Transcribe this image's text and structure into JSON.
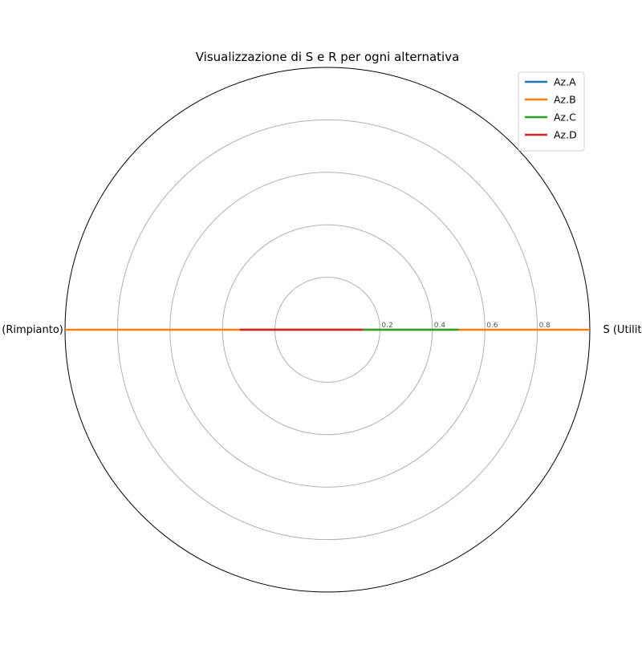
{
  "chart_data": {
    "type": "radar",
    "title": "Visualizzazione di S e R per ogni alternativa",
    "axes": [
      "S (Utilità)",
      "R (Rimpianto)"
    ],
    "rlim": [
      0,
      1
    ],
    "radial_ticks": [
      0.2,
      0.4,
      0.6,
      0.8
    ],
    "radial_tick_labels": [
      "0.2",
      "0.4",
      "0.6",
      "0.8"
    ],
    "grid": true,
    "legend_position": "top-right",
    "series": [
      {
        "name": "Az.A",
        "color": "#1f77b4",
        "values": [
          0.0,
          0.0
        ]
      },
      {
        "name": "Az.B",
        "color": "#ff7f0e",
        "values": [
          1.0,
          1.0
        ]
      },
      {
        "name": "Az.C",
        "color": "#2ca02c",
        "values": [
          0.5,
          0.333
        ]
      },
      {
        "name": "Az.D",
        "color": "#d62728",
        "values": [
          0.136,
          0.333
        ]
      }
    ]
  }
}
